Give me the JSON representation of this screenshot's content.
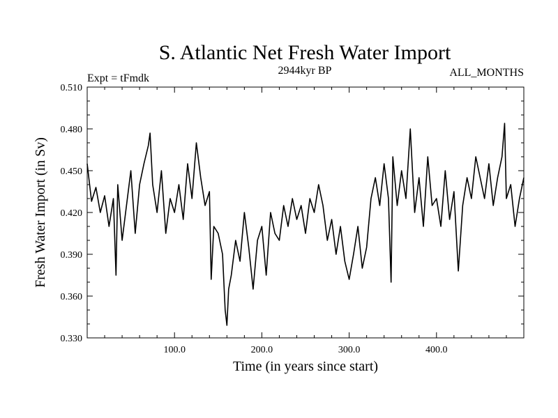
{
  "chart_data": {
    "type": "line",
    "title": "S. Atlantic Net Fresh Water Import",
    "subtitle_left": "Expt = tFmdk",
    "subtitle_center": "2944kyr BP",
    "subtitle_right": "ALL_MONTHS",
    "xlabel": "Time (in years since start)",
    "ylabel": "Fresh Water Import (in Sv)",
    "xlim": [
      0,
      500
    ],
    "ylim": [
      0.33,
      0.51
    ],
    "xticks": [
      100,
      200,
      300,
      400
    ],
    "xtick_labels": [
      "100.0",
      "200.0",
      "300.0",
      "400.0"
    ],
    "yticks": [
      0.33,
      0.36,
      0.39,
      0.42,
      0.45,
      0.48,
      0.51
    ],
    "ytick_labels": [
      "0.330",
      "0.360",
      "0.390",
      "0.420",
      "0.450",
      "0.480",
      "0.510"
    ],
    "grid": false,
    "line_color": "#000000",
    "series": [
      {
        "name": "Fresh Water Import",
        "x": [
          0,
          5,
          10,
          15,
          20,
          25,
          30,
          33,
          35,
          40,
          45,
          50,
          55,
          60,
          65,
          70,
          72,
          75,
          80,
          85,
          90,
          95,
          100,
          105,
          110,
          115,
          120,
          125,
          130,
          135,
          140,
          142,
          145,
          150,
          155,
          158,
          160,
          162,
          165,
          170,
          175,
          180,
          185,
          190,
          195,
          200,
          205,
          210,
          215,
          220,
          225,
          230,
          235,
          240,
          245,
          250,
          255,
          260,
          265,
          270,
          275,
          280,
          285,
          290,
          295,
          300,
          305,
          310,
          315,
          320,
          325,
          330,
          335,
          340,
          345,
          348,
          350,
          355,
          360,
          365,
          370,
          375,
          380,
          385,
          390,
          395,
          400,
          405,
          410,
          415,
          420,
          425,
          430,
          435,
          440,
          445,
          450,
          455,
          460,
          465,
          470,
          475,
          478,
          480,
          485,
          490,
          495,
          500
        ],
        "y": [
          0.455,
          0.428,
          0.438,
          0.42,
          0.432,
          0.41,
          0.43,
          0.375,
          0.44,
          0.4,
          0.425,
          0.45,
          0.405,
          0.44,
          0.455,
          0.468,
          0.477,
          0.44,
          0.42,
          0.45,
          0.405,
          0.43,
          0.42,
          0.44,
          0.415,
          0.455,
          0.43,
          0.47,
          0.445,
          0.425,
          0.435,
          0.372,
          0.41,
          0.405,
          0.39,
          0.35,
          0.339,
          0.365,
          0.375,
          0.4,
          0.385,
          0.42,
          0.395,
          0.365,
          0.4,
          0.41,
          0.375,
          0.42,
          0.405,
          0.4,
          0.425,
          0.41,
          0.43,
          0.415,
          0.425,
          0.405,
          0.43,
          0.42,
          0.44,
          0.425,
          0.4,
          0.415,
          0.39,
          0.41,
          0.385,
          0.372,
          0.39,
          0.41,
          0.38,
          0.395,
          0.43,
          0.445,
          0.425,
          0.455,
          0.43,
          0.37,
          0.46,
          0.425,
          0.45,
          0.43,
          0.48,
          0.42,
          0.445,
          0.41,
          0.46,
          0.425,
          0.43,
          0.41,
          0.45,
          0.415,
          0.435,
          0.378,
          0.425,
          0.445,
          0.43,
          0.46,
          0.445,
          0.43,
          0.455,
          0.425,
          0.445,
          0.46,
          0.484,
          0.43,
          0.44,
          0.41,
          0.43,
          0.445
        ]
      }
    ]
  }
}
